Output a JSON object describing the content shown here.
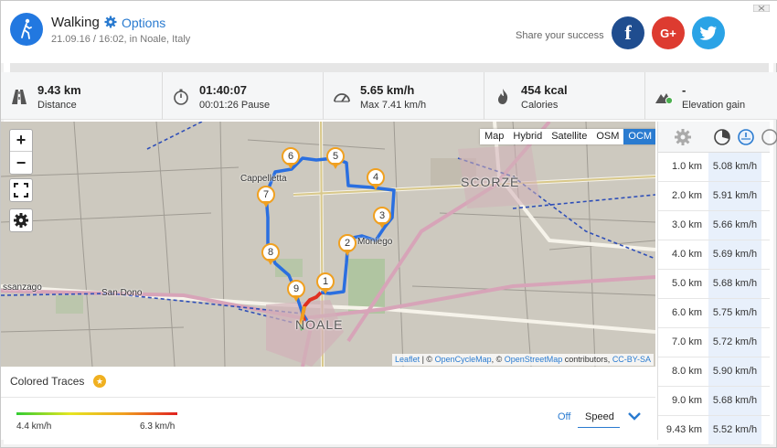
{
  "activity": {
    "title": "Walking",
    "options_label": "Options",
    "subtitle": "21.09.16 / 16:02, in Noale, Italy",
    "icon": "walking-person-icon"
  },
  "share": {
    "label": "Share your success",
    "facebook": "f",
    "googleplus": "G+",
    "twitter": "twitter-bird-icon"
  },
  "stats": [
    {
      "icon": "road-icon",
      "value": "9.43 km",
      "sub": "Distance"
    },
    {
      "icon": "stopwatch-icon",
      "value": "01:40:07",
      "sub": "00:01:26 Pause"
    },
    {
      "icon": "speedometer-icon",
      "value": "5.65 km/h",
      "sub": "Max 7.41 km/h"
    },
    {
      "icon": "flame-icon",
      "value": "454 kcal",
      "sub": "Calories"
    },
    {
      "icon": "elevation-icon",
      "value": "-",
      "sub": "Elevation gain"
    }
  ],
  "map": {
    "zoom_in": "+",
    "zoom_out": "−",
    "layers": [
      "Map",
      "Hybrid",
      "Satellite",
      "OSM",
      "OCM"
    ],
    "active_layer": "OCM",
    "attribution": {
      "leaflet": "Leaflet",
      "sep1": " | © ",
      "ocm": "OpenCycleMap",
      "sep2": ", © ",
      "osm": "OpenStreetMap",
      "sep3": " contributors, ",
      "license": "CC-BY-SA"
    },
    "places": [
      "Cappelletta",
      "SCORZÈ",
      "Moniego",
      "San Dono",
      "ssanzago",
      "NOALE"
    ],
    "markers": [
      "1",
      "2",
      "3",
      "4",
      "5",
      "6",
      "7",
      "8",
      "9"
    ]
  },
  "splits": {
    "rows": [
      {
        "km": "1.0 km",
        "speed": "5.08 km/h"
      },
      {
        "km": "2.0 km",
        "speed": "5.91 km/h"
      },
      {
        "km": "3.0 km",
        "speed": "5.66 km/h"
      },
      {
        "km": "4.0 km",
        "speed": "5.69 km/h"
      },
      {
        "km": "5.0 km",
        "speed": "5.68 km/h"
      },
      {
        "km": "6.0 km",
        "speed": "5.75 km/h"
      },
      {
        "km": "7.0 km",
        "speed": "5.72 km/h"
      },
      {
        "km": "8.0 km",
        "speed": "5.90 km/h"
      },
      {
        "km": "9.0 km",
        "speed": "5.68 km/h"
      },
      {
        "km": "9.43 km",
        "speed": "5.52 km/h"
      }
    ]
  },
  "traces": {
    "title": "Colored Traces",
    "min": "4.4 km/h",
    "max": "6.3 km/h",
    "off_label": "Off",
    "selected": "Speed",
    "gradient": [
      "#33cc33",
      "#e6e620",
      "#f0a020",
      "#e02020"
    ]
  },
  "colors": {
    "accent": "#2a7bd0",
    "route": "#2a6fe0",
    "marker": "#f0a020",
    "facebook": "#1f4d8f",
    "googleplus": "#dd3b30",
    "twitter": "#2aa3e6"
  }
}
